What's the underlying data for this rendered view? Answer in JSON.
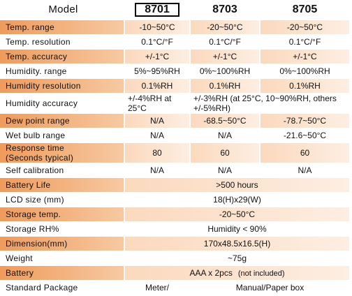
{
  "header": {
    "label": "Model",
    "models": [
      "8701",
      "8703",
      "8705"
    ]
  },
  "rows": [
    {
      "label": "Temp. range",
      "cells": [
        "-10~50°C",
        "-20~50°C",
        "-20~50°C"
      ]
    },
    {
      "label": "Temp. resolution",
      "cells": [
        "0.1°C/°F",
        "0.1°C/°F",
        "0.1°C/°F"
      ]
    },
    {
      "label": "Temp. accuracy",
      "cells": [
        "+/-1°C",
        "+/-1°C",
        "+/-1°C"
      ]
    },
    {
      "label": "Humidity. range",
      "cells": [
        "5%~95%RH",
        "0%~100%RH",
        "0%~100%RH"
      ]
    },
    {
      "label": "Humidity resolution",
      "cells": [
        "0.1%RH",
        "0.1%RH",
        "0.1%RH"
      ]
    },
    {
      "label": "Humidity accuracy",
      "cells": [
        "+/-4%RH at 25°C",
        "+/-3%RH (at 25°C, 10~90%RH, others +/-5%RH)"
      ]
    },
    {
      "label": "Dew point range",
      "cells": [
        "N/A",
        "-68.5~50°C",
        "-78.7~50°C"
      ]
    },
    {
      "label": "Wet bulb range",
      "cells": [
        "N/A",
        "N/A",
        "-21.6~50°C"
      ]
    },
    {
      "label": "Response time\n(Seconds typical)",
      "cells": [
        "80",
        "60",
        "60"
      ]
    },
    {
      "label": "Self calibration",
      "cells": [
        "N/A",
        "N/A",
        "N/A"
      ]
    },
    {
      "label": "Battery Life",
      "cells": [
        ">500 hours"
      ]
    },
    {
      "label": "LCD size (mm)",
      "cells": [
        "18(H)x29(W)"
      ]
    },
    {
      "label": "Storage temp.",
      "cells": [
        "-20~50°C"
      ]
    },
    {
      "label": "Storage RH%",
      "cells": [
        "Humidity < 90%"
      ]
    },
    {
      "label": "Dimension(mm)",
      "cells": [
        "170x48.5x16.5(H)"
      ]
    },
    {
      "label": "Weight",
      "cells": [
        "~75g"
      ]
    },
    {
      "label": "Battery",
      "cells": [
        "AAA x 2pcs"
      ],
      "note": "(not included)"
    },
    {
      "label": "Standard Package",
      "cells": [
        "Meter/",
        "Manual/Paper box"
      ]
    }
  ]
}
